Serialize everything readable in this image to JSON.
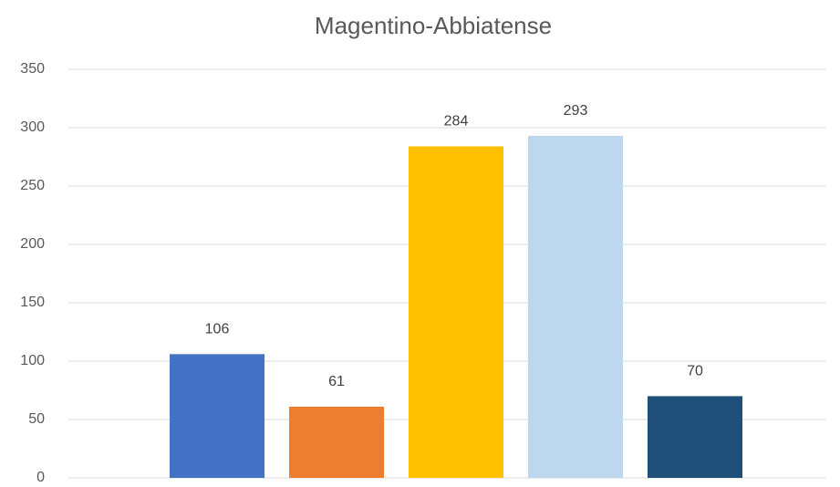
{
  "chart_data": {
    "type": "bar",
    "title": "Magentino-Abbiatense",
    "categories": [
      null,
      null,
      null,
      null,
      null
    ],
    "values": [
      106,
      61,
      284,
      293,
      70
    ],
    "colors": [
      "#4472c4",
      "#ed7d31",
      "#ffc000",
      "#bdd7ee",
      "#1f4e79"
    ],
    "ylim": [
      0,
      350
    ],
    "yticks": [
      0,
      50,
      100,
      150,
      200,
      250,
      300,
      350
    ],
    "grid": true
  }
}
